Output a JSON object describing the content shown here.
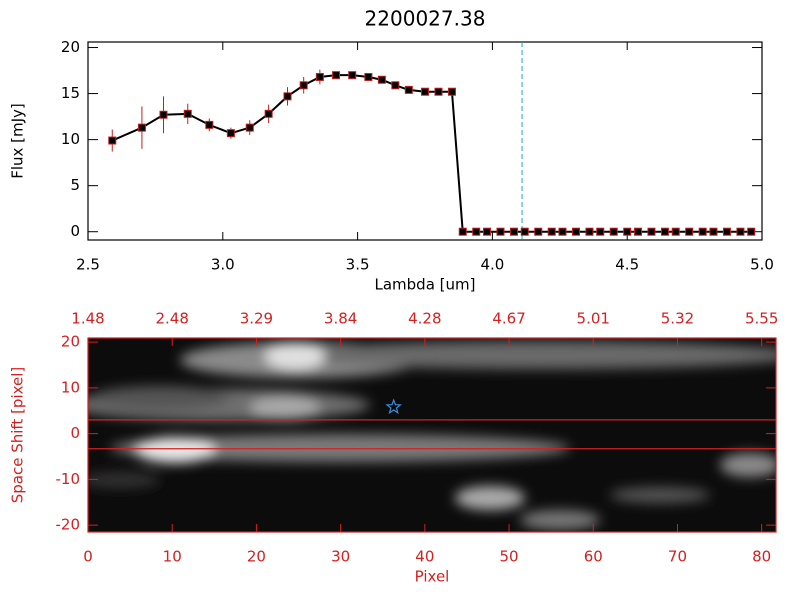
{
  "chart_data": [
    {
      "type": "line",
      "title": "2200027.38",
      "x_label": "Lambda [um]",
      "y_label": "Flux [mJy]",
      "x": [
        2.59,
        2.7,
        2.78,
        2.87,
        2.95,
        3.03,
        3.1,
        3.17,
        3.24,
        3.3,
        3.36,
        3.42,
        3.48,
        3.54,
        3.59,
        3.64,
        3.69,
        3.75,
        3.8,
        3.85,
        3.89,
        3.94,
        3.98,
        4.03,
        4.08,
        4.12,
        4.17,
        4.22,
        4.26,
        4.31,
        4.36,
        4.4,
        4.45,
        4.5,
        4.54,
        4.59,
        4.64,
        4.68,
        4.73,
        4.78,
        4.82,
        4.87,
        4.92,
        4.96
      ],
      "series": [
        {
          "color": "#000000",
          "error_color": "#c0201c",
          "values": [
            9.9,
            11.3,
            12.7,
            12.8,
            11.6,
            10.7,
            11.3,
            12.8,
            14.7,
            15.9,
            16.8,
            17.0,
            17.0,
            16.8,
            16.5,
            15.9,
            15.4,
            15.2,
            15.2,
            15.2,
            0,
            0,
            0,
            0,
            0,
            0,
            0,
            0,
            0,
            0,
            0,
            0,
            0,
            0,
            0,
            0,
            0,
            0,
            0,
            0,
            0,
            0,
            0,
            0
          ],
          "errors": [
            1.2,
            2.3,
            2.0,
            1.1,
            0.7,
            0.6,
            0.8,
            1.0,
            1.0,
            0.9,
            0.8,
            0.4,
            0.4,
            0.4,
            0.4,
            0.4,
            0.4,
            0.3,
            0.3,
            0.3,
            0,
            0,
            0,
            0,
            0,
            0,
            0,
            0,
            0,
            0,
            0,
            0,
            0,
            0,
            0,
            0,
            0,
            0,
            0,
            0,
            0,
            0,
            0,
            0
          ]
        }
      ],
      "xlim": [
        2.5,
        5.0
      ],
      "ylim": [
        -0.9,
        20.6
      ],
      "xticks": [
        2.5,
        {
          "value": 3,
          "label": "3.0"
        },
        3.5,
        {
          "value": 4,
          "label": "4.0"
        },
        4.5,
        {
          "value": 5,
          "label": "5.0"
        }
      ],
      "yticks": [
        0,
        5,
        10,
        15,
        20
      ],
      "vline": 4.11,
      "vline_color": "#2aa0b8"
    },
    {
      "type": "heatmap",
      "x_label": "Pixel",
      "y_label": "Space Shift [pixel]",
      "axis_color": "#d42020",
      "xlim": [
        0,
        81.7
      ],
      "ylim": [
        -21.5,
        20.9
      ],
      "xticks": [
        0,
        10,
        20,
        30,
        40,
        50,
        60,
        70,
        80
      ],
      "x2ticks": [
        {
          "value": 0,
          "label": "1.48"
        },
        {
          "value": 10,
          "label": "2.48"
        },
        {
          "value": 20,
          "label": "3.29"
        },
        {
          "value": 30,
          "label": "3.84"
        },
        {
          "value": 40,
          "label": "4.28"
        },
        {
          "value": 50,
          "label": "4.67"
        },
        {
          "value": 60,
          "label": "5.01"
        },
        {
          "value": 70,
          "label": "5.32"
        },
        {
          "value": 80,
          "label": "5.55"
        }
      ],
      "yticks": [
        -20,
        -10,
        0,
        10,
        20
      ],
      "hlines": [
        3.0,
        -3.3
      ],
      "hline_color": "#d42020",
      "marker": {
        "x": 36.3,
        "y": 5.8,
        "color": "#3a8ee0"
      }
    }
  ]
}
